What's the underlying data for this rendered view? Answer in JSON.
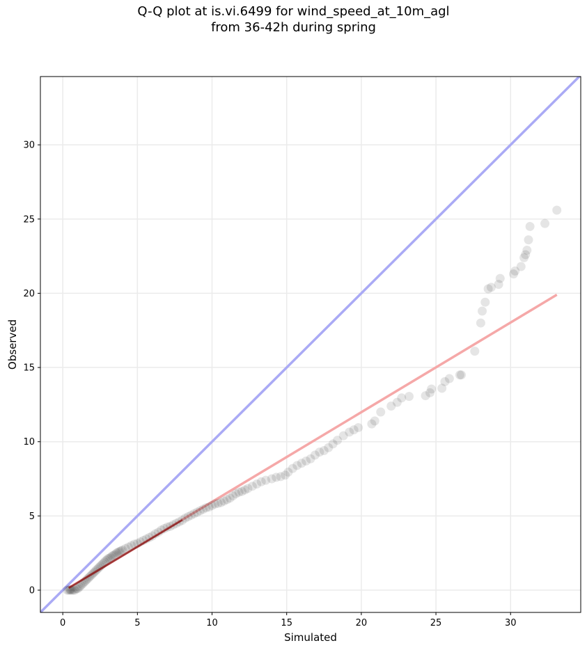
{
  "chart_data": {
    "type": "scatter",
    "title": "Q-Q plot at is.vi.6499 for wind_speed_at_10m_agl",
    "subtitle": "from 36-42h during spring",
    "xlabel": "Simulated",
    "ylabel": "Observed",
    "xlim": [
      -1.5,
      34.7
    ],
    "ylim": [
      -1.5,
      34.6
    ],
    "xticks": [
      0,
      5,
      10,
      15,
      20,
      25,
      30
    ],
    "yticks": [
      0,
      5,
      10,
      15,
      20,
      25,
      30
    ],
    "grid": true,
    "reference_line": {
      "slope": 1,
      "intercept": 0,
      "color": "#aaaaf5"
    },
    "fit_line": {
      "x": [
        0.4,
        33.1
      ],
      "y": [
        0.15,
        19.9
      ],
      "color": "#f5a8a8"
    },
    "fit_line_dark": {
      "x": [
        0.4,
        8.0
      ],
      "y": [
        0.15,
        4.72
      ],
      "color": "#8b1a1a"
    },
    "marker_color": "#000000",
    "points": [
      [
        0.3,
        0.0
      ],
      [
        0.4,
        0.0
      ],
      [
        0.5,
        0.0
      ],
      [
        0.5,
        0.05
      ],
      [
        0.6,
        0.0
      ],
      [
        0.7,
        0.0
      ],
      [
        0.8,
        0.0
      ],
      [
        0.9,
        0.1
      ],
      [
        1.0,
        0.1
      ],
      [
        1.1,
        0.2
      ],
      [
        1.2,
        0.3
      ],
      [
        1.3,
        0.4
      ],
      [
        1.4,
        0.5
      ],
      [
        1.5,
        0.6
      ],
      [
        1.6,
        0.7
      ],
      [
        1.7,
        0.8
      ],
      [
        1.8,
        0.9
      ],
      [
        1.9,
        1.0
      ],
      [
        2.0,
        1.1
      ],
      [
        2.1,
        1.2
      ],
      [
        2.2,
        1.3
      ],
      [
        2.3,
        1.4
      ],
      [
        2.4,
        1.5
      ],
      [
        2.5,
        1.6
      ],
      [
        2.6,
        1.7
      ],
      [
        2.7,
        1.8
      ],
      [
        2.8,
        1.9
      ],
      [
        2.9,
        2.0
      ],
      [
        3.0,
        2.1
      ],
      [
        3.1,
        2.15
      ],
      [
        3.2,
        2.2
      ],
      [
        3.3,
        2.3
      ],
      [
        3.4,
        2.35
      ],
      [
        3.5,
        2.4
      ],
      [
        3.6,
        2.5
      ],
      [
        3.7,
        2.55
      ],
      [
        3.8,
        2.6
      ],
      [
        3.9,
        2.65
      ],
      [
        4.0,
        2.7
      ],
      [
        4.2,
        2.8
      ],
      [
        4.4,
        2.9
      ],
      [
        4.6,
        3.0
      ],
      [
        4.8,
        3.1
      ],
      [
        5.0,
        3.15
      ],
      [
        5.2,
        3.25
      ],
      [
        5.4,
        3.35
      ],
      [
        5.6,
        3.45
      ],
      [
        5.8,
        3.55
      ],
      [
        6.0,
        3.65
      ],
      [
        6.2,
        3.8
      ],
      [
        6.4,
        3.9
      ],
      [
        6.6,
        4.05
      ],
      [
        6.8,
        4.15
      ],
      [
        7.0,
        4.25
      ],
      [
        7.2,
        4.3
      ],
      [
        7.4,
        4.4
      ],
      [
        7.6,
        4.5
      ],
      [
        7.8,
        4.6
      ],
      [
        8.0,
        4.7
      ],
      [
        8.2,
        4.85
      ],
      [
        8.4,
        4.95
      ],
      [
        8.6,
        5.05
      ],
      [
        8.8,
        5.15
      ],
      [
        9.0,
        5.25
      ],
      [
        9.2,
        5.35
      ],
      [
        9.4,
        5.45
      ],
      [
        9.6,
        5.55
      ],
      [
        9.8,
        5.6
      ],
      [
        10.0,
        5.7
      ],
      [
        10.2,
        5.8
      ],
      [
        10.4,
        5.85
      ],
      [
        10.6,
        5.9
      ],
      [
        10.8,
        6.0
      ],
      [
        11.0,
        6.1
      ],
      [
        11.2,
        6.2
      ],
      [
        11.4,
        6.35
      ],
      [
        11.6,
        6.5
      ],
      [
        11.8,
        6.6
      ],
      [
        12.0,
        6.65
      ],
      [
        12.2,
        6.75
      ],
      [
        12.4,
        6.85
      ],
      [
        12.7,
        7.0
      ],
      [
        13.0,
        7.15
      ],
      [
        13.3,
        7.3
      ],
      [
        13.6,
        7.4
      ],
      [
        14.0,
        7.5
      ],
      [
        14.3,
        7.6
      ],
      [
        14.6,
        7.65
      ],
      [
        14.9,
        7.75
      ],
      [
        15.1,
        7.95
      ],
      [
        15.4,
        8.2
      ],
      [
        15.7,
        8.4
      ],
      [
        16.0,
        8.55
      ],
      [
        16.3,
        8.7
      ],
      [
        16.6,
        8.85
      ],
      [
        16.9,
        9.1
      ],
      [
        17.2,
        9.3
      ],
      [
        17.5,
        9.4
      ],
      [
        17.8,
        9.6
      ],
      [
        18.1,
        9.85
      ],
      [
        18.4,
        10.1
      ],
      [
        18.8,
        10.4
      ],
      [
        19.2,
        10.65
      ],
      [
        19.5,
        10.8
      ],
      [
        19.8,
        10.95
      ],
      [
        20.7,
        11.2
      ],
      [
        20.9,
        11.4
      ],
      [
        21.3,
        12.0
      ],
      [
        22.0,
        12.4
      ],
      [
        22.4,
        12.65
      ],
      [
        22.7,
        12.95
      ],
      [
        23.2,
        13.05
      ],
      [
        24.3,
        13.1
      ],
      [
        24.6,
        13.3
      ],
      [
        24.7,
        13.55
      ],
      [
        25.4,
        13.6
      ],
      [
        25.6,
        14.05
      ],
      [
        25.9,
        14.25
      ],
      [
        26.6,
        14.5
      ],
      [
        26.7,
        14.5
      ],
      [
        27.6,
        16.1
      ],
      [
        28.0,
        18.0
      ],
      [
        28.1,
        18.8
      ],
      [
        28.3,
        19.4
      ],
      [
        28.5,
        20.3
      ],
      [
        28.7,
        20.4
      ],
      [
        29.2,
        20.6
      ],
      [
        29.3,
        21.0
      ],
      [
        30.2,
        21.3
      ],
      [
        30.3,
        21.5
      ],
      [
        30.7,
        21.8
      ],
      [
        30.9,
        22.4
      ],
      [
        31.0,
        22.6
      ],
      [
        31.1,
        22.9
      ],
      [
        31.2,
        23.6
      ],
      [
        31.3,
        24.5
      ],
      [
        32.3,
        24.7
      ],
      [
        33.1,
        25.6
      ]
    ]
  }
}
